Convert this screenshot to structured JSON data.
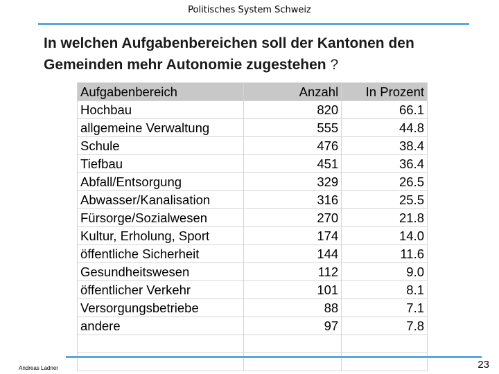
{
  "header": {
    "title": "Politisches System Schweiz"
  },
  "question": {
    "text": "In welchen Aufgabenbereichen soll der Kantonen den Gemeinden mehr Autonomie zugestehen",
    "mark": "?"
  },
  "table": {
    "headers": [
      "Aufgabenbereich",
      "Anzahl",
      "In Prozent"
    ],
    "rows": [
      [
        "Hochbau",
        "820",
        "66.1"
      ],
      [
        "allgemeine Verwaltung",
        "555",
        "44.8"
      ],
      [
        "Schule",
        "476",
        "38.4"
      ],
      [
        "Tiefbau",
        "451",
        "36.4"
      ],
      [
        "Abfall/Entsorgung",
        "329",
        "26.5"
      ],
      [
        "Abwasser/Kanalisation",
        "316",
        "25.5"
      ],
      [
        "Fürsorge/Sozialwesen",
        "270",
        "21.8"
      ],
      [
        "Kultur, Erholung, Sport",
        "174",
        "14.0"
      ],
      [
        "öffentliche Sicherheit",
        "144",
        "11.6"
      ],
      [
        "Gesundheitswesen",
        "112",
        "9.0"
      ],
      [
        "öffentlicher Verkehr",
        "101",
        "8.1"
      ],
      [
        "Versorgungsbetriebe",
        "88",
        "7.1"
      ],
      [
        "andere",
        "97",
        "7.8"
      ],
      [
        "",
        "",
        ""
      ],
      [
        "",
        "",
        ""
      ]
    ]
  },
  "footer": {
    "author": "Andreas Ladner",
    "page": "23"
  },
  "colors": {
    "accent_rule": "#5aa7df",
    "header_fill": "#c8c8c8"
  }
}
